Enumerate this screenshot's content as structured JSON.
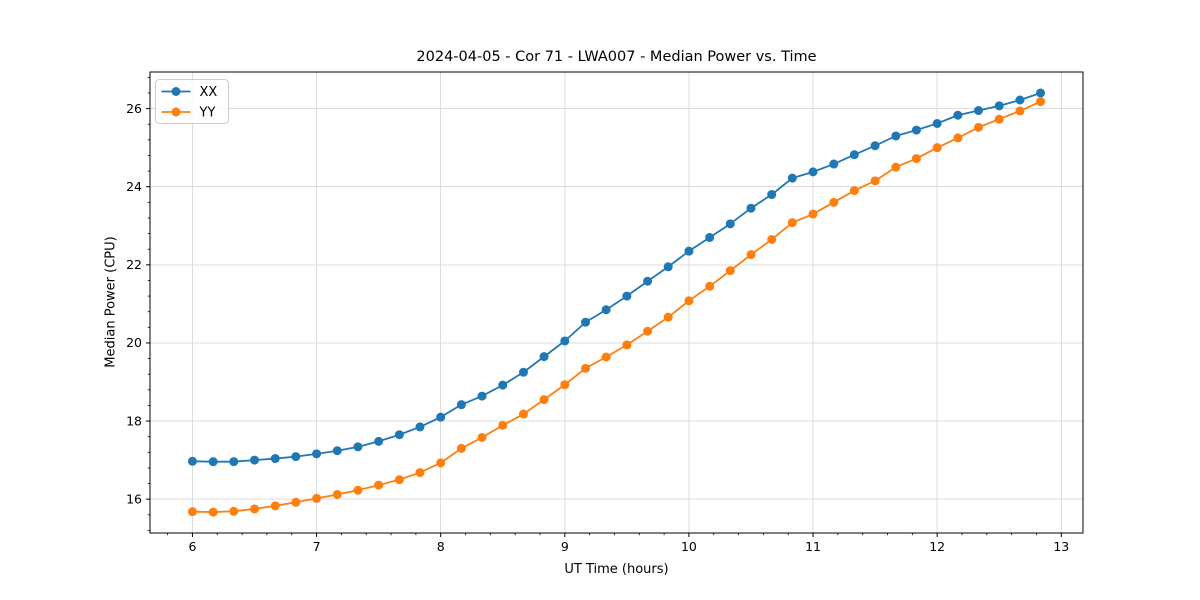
{
  "figure": {
    "title": "2024-04-05 - Cor 71 - LWA007 - Median Power vs. Time",
    "xlabel": "UT Time (hours)",
    "ylabel": "Median Power (CPU)"
  },
  "chart_data": {
    "type": "line",
    "title": "2024-04-05 - Cor 71 - LWA007 - Median Power vs. Time",
    "xlabel": "UT Time (hours)",
    "ylabel": "Median Power (CPU)",
    "x": [
      6.0,
      6.167,
      6.333,
      6.5,
      6.667,
      6.833,
      7.0,
      7.167,
      7.333,
      7.5,
      7.667,
      7.833,
      8.0,
      8.167,
      8.333,
      8.5,
      8.667,
      8.833,
      9.0,
      9.167,
      9.333,
      9.5,
      9.667,
      9.833,
      10.0,
      10.167,
      10.333,
      10.5,
      10.667,
      10.833,
      11.0,
      11.167,
      11.333,
      11.5,
      11.667,
      11.833,
      12.0,
      12.167,
      12.333,
      12.5,
      12.667,
      12.833
    ],
    "series": [
      {
        "name": "XX",
        "color": "#1f77b4",
        "values": [
          16.97,
          16.96,
          16.96,
          17.0,
          17.04,
          17.09,
          17.16,
          17.24,
          17.34,
          17.48,
          17.65,
          17.85,
          18.1,
          18.42,
          18.64,
          18.92,
          19.25,
          19.65,
          20.05,
          20.53,
          20.85,
          21.2,
          21.58,
          21.95,
          22.35,
          22.7,
          23.05,
          23.45,
          23.8,
          24.22,
          24.38,
          24.58,
          24.82,
          25.05,
          25.3,
          25.45,
          25.62,
          25.83,
          25.95,
          26.07,
          26.22,
          26.4
        ]
      },
      {
        "name": "YY",
        "color": "#ff7f0e",
        "values": [
          15.68,
          15.67,
          15.69,
          15.75,
          15.83,
          15.92,
          16.02,
          16.12,
          16.23,
          16.36,
          16.5,
          16.68,
          16.93,
          17.3,
          17.58,
          17.89,
          18.18,
          18.55,
          18.93,
          19.35,
          19.64,
          19.95,
          20.3,
          20.66,
          21.08,
          21.45,
          21.85,
          22.26,
          22.65,
          23.08,
          23.3,
          23.6,
          23.9,
          24.15,
          24.5,
          24.72,
          25.0,
          25.25,
          25.52,
          25.73,
          25.94,
          26.18
        ]
      }
    ],
    "xlim": [
      5.658,
      13.175
    ],
    "ylim": [
      15.134,
      26.937
    ],
    "xticks": [
      6,
      7,
      8,
      9,
      10,
      11,
      12,
      13
    ],
    "yticks": [
      16,
      18,
      20,
      22,
      24,
      26
    ],
    "minor_tick_step_x": 0.2,
    "minor_tick_step_y": 0.4,
    "grid": true,
    "grid_color": "#dcdcdc",
    "spine_color": "#000000",
    "legend": {
      "position": "upper left",
      "entries": [
        "XX",
        "YY"
      ]
    },
    "marker": "circle",
    "marker_radius": 4.5,
    "line_width": 1.8
  }
}
